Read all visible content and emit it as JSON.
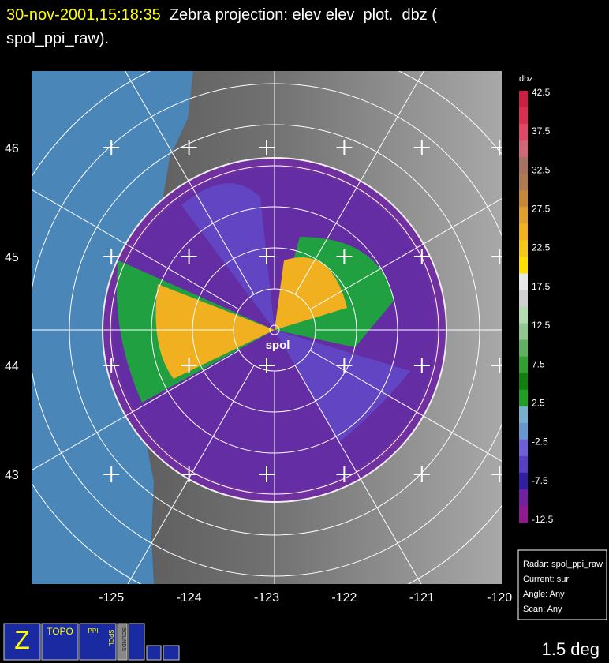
{
  "header": {
    "timestamp": "30-nov-2001,15:18:35",
    "title_line1": "Zebra projection: elev elev  plot.  dbz (",
    "title_line2": "spol_ppi_raw)."
  },
  "map": {
    "radar_label": "spol",
    "lat_ticks": [
      46,
      45,
      44,
      43
    ],
    "lon_ticks": [
      -125,
      -124,
      -123,
      -122,
      -121,
      -120
    ]
  },
  "colorbar": {
    "label": "dbz",
    "ticks": [
      42.5,
      37.5,
      32.5,
      27.5,
      22.5,
      17.5,
      12.5,
      7.5,
      2.5,
      -2.5,
      -7.5,
      -12.5
    ],
    "colors": [
      "#cc2040",
      "#d83050",
      "#e04868",
      "#d06878",
      "#a87060",
      "#b07a50",
      "#c88838",
      "#e0a030",
      "#f0b020",
      "#f8c818",
      "#ffe000",
      "#e8e8e8",
      "#d0d0d0",
      "#b0dcb0",
      "#90c890",
      "#60b060",
      "#30a030",
      "#108010",
      "#20a020",
      "#78b0d0",
      "#6898d0",
      "#7060d8",
      "#5840c0",
      "#3020a0",
      "#7020a0",
      "#901890"
    ]
  },
  "info": {
    "lines": [
      "Radar: spol_ppi_raw",
      "Current: sur",
      "Angle: Any",
      "Scan: Any"
    ]
  },
  "toolbar": {
    "buttons": [
      "TOPO",
      "PPI",
      "SPOL",
      "SOUNDS"
    ]
  },
  "status": "1.5 deg"
}
